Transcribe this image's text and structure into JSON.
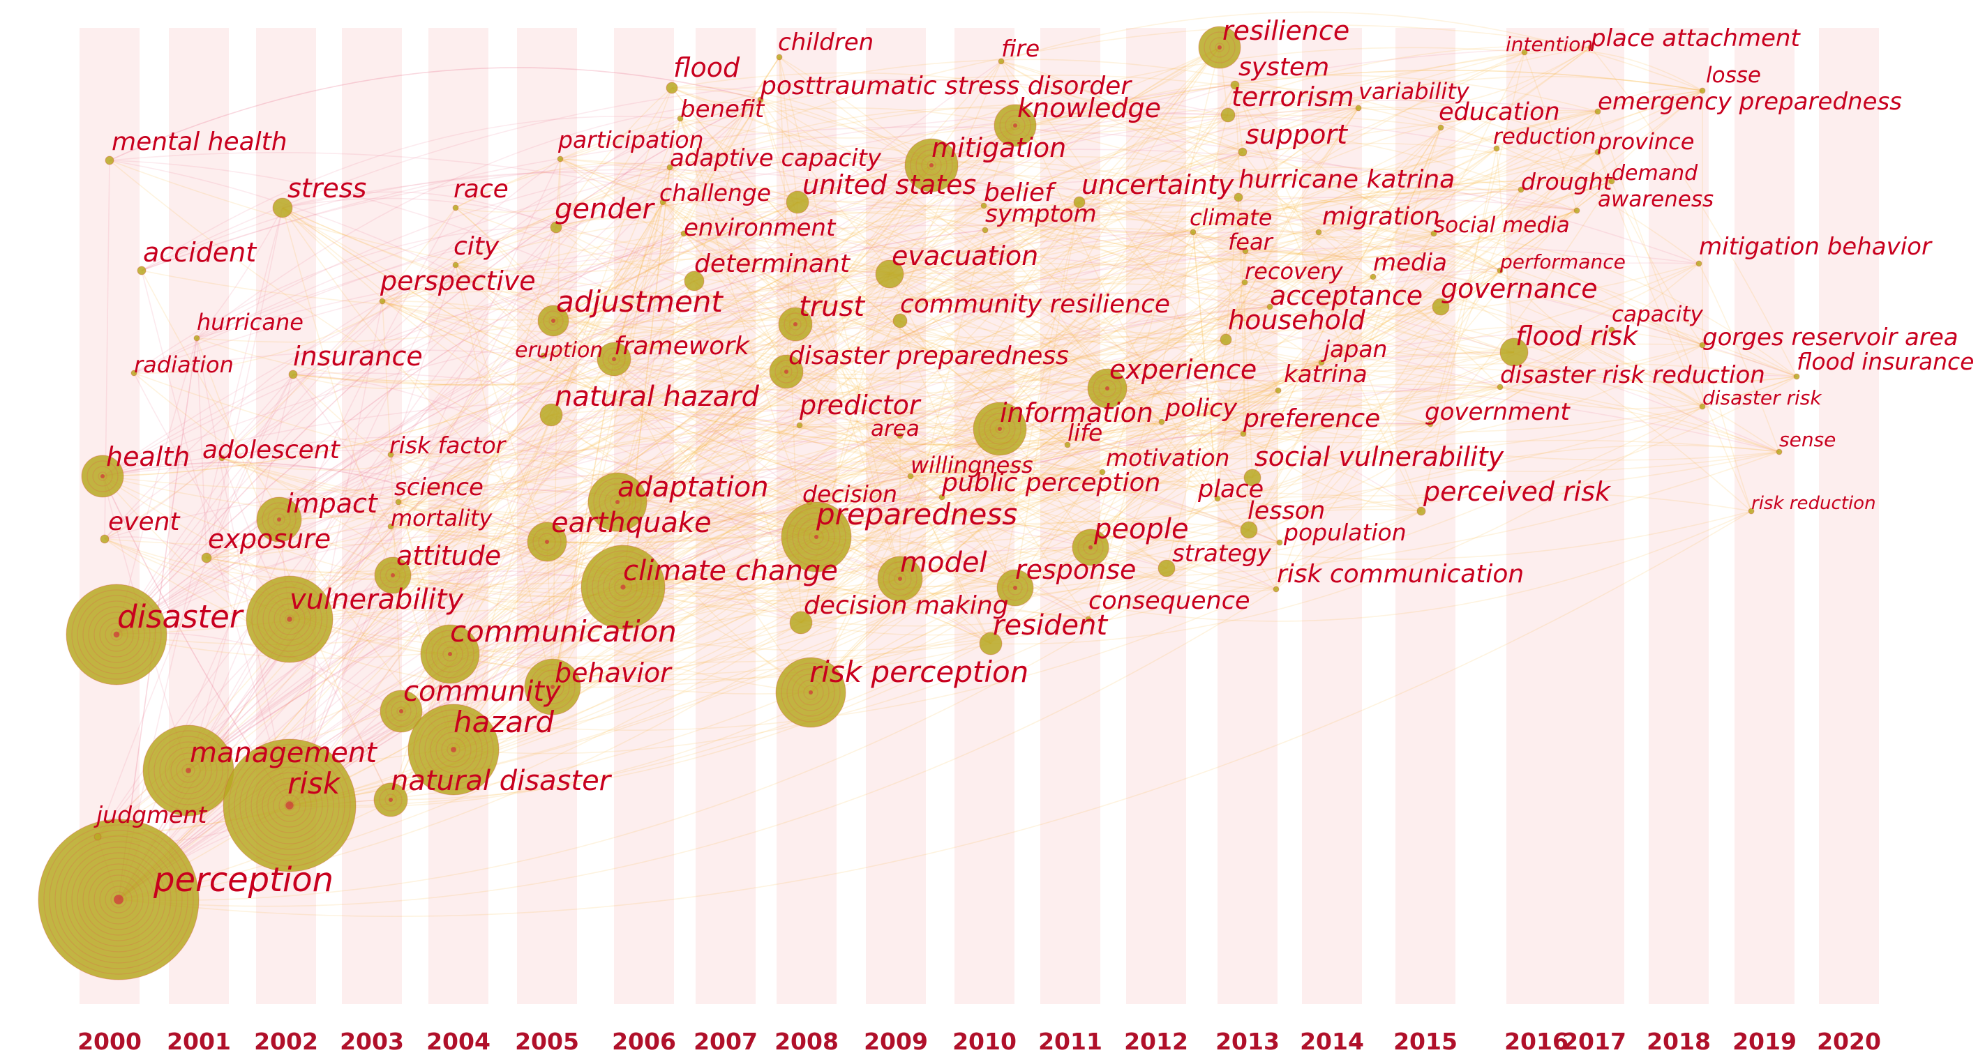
{
  "title": "",
  "years": [
    "2000",
    "2001",
    "2002",
    "2003",
    "2004",
    "2005",
    "2006",
    "2007",
    "2008",
    "2009",
    "2010",
    "2011",
    "2012",
    "2013",
    "2014",
    "2015",
    "2016",
    "2017",
    "2018",
    "2019",
    "2020"
  ],
  "chart_data": {
    "type": "timezone-cooccurrence-network",
    "xlabel": "",
    "ylabel": "",
    "x_axis": "year",
    "keywords": [
      {
        "label": "perception",
        "year": "2000",
        "freq": 10
      },
      {
        "label": "disaster",
        "year": "2000",
        "freq": 7
      },
      {
        "label": "health",
        "year": "2000",
        "freq": 3
      },
      {
        "label": "event",
        "year": "2000",
        "freq": 1
      },
      {
        "label": "accident",
        "year": "2000",
        "freq": 1
      },
      {
        "label": "mental health",
        "year": "2000",
        "freq": 1
      },
      {
        "label": "judgment",
        "year": "2000",
        "freq": 1
      },
      {
        "label": "radiation",
        "year": "2000",
        "freq": 1
      },
      {
        "label": "management",
        "year": "2001",
        "freq": 6
      },
      {
        "label": "hurricane",
        "year": "2001",
        "freq": 1
      },
      {
        "label": "exposure",
        "year": "2001",
        "freq": 1
      },
      {
        "label": "risk",
        "year": "2002",
        "freq": 8
      },
      {
        "label": "vulnerability",
        "year": "2002",
        "freq": 5
      },
      {
        "label": "impact",
        "year": "2002",
        "freq": 3
      },
      {
        "label": "stress",
        "year": "2002",
        "freq": 1
      },
      {
        "label": "insurance",
        "year": "2002",
        "freq": 1
      },
      {
        "label": "adolescent",
        "year": "2002",
        "freq": 1
      },
      {
        "label": "attitude",
        "year": "2003",
        "freq": 2
      },
      {
        "label": "community",
        "year": "2003",
        "freq": 2
      },
      {
        "label": "natural disaster",
        "year": "2003",
        "freq": 2
      },
      {
        "label": "perspective",
        "year": "2003",
        "freq": 1
      },
      {
        "label": "science",
        "year": "2003",
        "freq": 1
      },
      {
        "label": "mortality",
        "year": "2003",
        "freq": 1
      },
      {
        "label": "risk factor",
        "year": "2003",
        "freq": 1
      },
      {
        "label": "hazard",
        "year": "2004",
        "freq": 5
      },
      {
        "label": "communication",
        "year": "2004",
        "freq": 3
      },
      {
        "label": "race",
        "year": "2004",
        "freq": 1
      },
      {
        "label": "city",
        "year": "2004",
        "freq": 1
      },
      {
        "label": "earthquake",
        "year": "2005",
        "freq": 2
      },
      {
        "label": "behavior",
        "year": "2005",
        "freq": 3
      },
      {
        "label": "adjustment",
        "year": "2005",
        "freq": 2
      },
      {
        "label": "natural hazard",
        "year": "2005",
        "freq": 1
      },
      {
        "label": "gender",
        "year": "2005",
        "freq": 1
      },
      {
        "label": "participation",
        "year": "2005",
        "freq": 1
      },
      {
        "label": "eruption",
        "year": "2005",
        "freq": 1
      },
      {
        "label": "climate change",
        "year": "2006",
        "freq": 5
      },
      {
        "label": "adaptation",
        "year": "2006",
        "freq": 3
      },
      {
        "label": "framework",
        "year": "2006",
        "freq": 2
      },
      {
        "label": "flood",
        "year": "2007",
        "freq": 1
      },
      {
        "label": "benefit",
        "year": "2007",
        "freq": 1
      },
      {
        "label": "adaptive capacity",
        "year": "2007",
        "freq": 1
      },
      {
        "label": "challenge",
        "year": "2007",
        "freq": 1
      },
      {
        "label": "environment",
        "year": "2007",
        "freq": 1
      },
      {
        "label": "determinant",
        "year": "2007",
        "freq": 1
      },
      {
        "label": "risk perception",
        "year": "2008",
        "freq": 5
      },
      {
        "label": "preparedness",
        "year": "2008",
        "freq": 5
      },
      {
        "label": "trust",
        "year": "2008",
        "freq": 2
      },
      {
        "label": "disaster preparedness",
        "year": "2008",
        "freq": 2
      },
      {
        "label": "decision making",
        "year": "2008",
        "freq": 1
      },
      {
        "label": "united states",
        "year": "2008",
        "freq": 1
      },
      {
        "label": "predictor",
        "year": "2008",
        "freq": 1
      },
      {
        "label": "decision",
        "year": "2008",
        "freq": 1
      },
      {
        "label": "children",
        "year": "2008",
        "freq": 1
      },
      {
        "label": "posttraumatic stress disorder",
        "year": "2008",
        "freq": 1
      },
      {
        "label": "model",
        "year": "2009",
        "freq": 3
      },
      {
        "label": "mitigation",
        "year": "2009",
        "freq": 3
      },
      {
        "label": "evacuation",
        "year": "2009",
        "freq": 2
      },
      {
        "label": "community resilience",
        "year": "2009",
        "freq": 1
      },
      {
        "label": "area",
        "year": "2009",
        "freq": 1
      },
      {
        "label": "willingness",
        "year": "2009",
        "freq": 1
      },
      {
        "label": "information",
        "year": "2010",
        "freq": 3
      },
      {
        "label": "knowledge",
        "year": "2010",
        "freq": 3
      },
      {
        "label": "response",
        "year": "2010",
        "freq": 2
      },
      {
        "label": "resident",
        "year": "2010",
        "freq": 1
      },
      {
        "label": "fire",
        "year": "2010",
        "freq": 1
      },
      {
        "label": "belief",
        "year": "2010",
        "freq": 1
      },
      {
        "label": "symptom",
        "year": "2010",
        "freq": 1
      },
      {
        "label": "public perception",
        "year": "2010",
        "freq": 1
      },
      {
        "label": "uncertainty",
        "year": "2011",
        "freq": 1
      },
      {
        "label": "life",
        "year": "2011",
        "freq": 1
      },
      {
        "label": "experience",
        "year": "2011",
        "freq": 2
      },
      {
        "label": "people",
        "year": "2011",
        "freq": 2
      },
      {
        "label": "consequence",
        "year": "2011",
        "freq": 1
      },
      {
        "label": "motivation",
        "year": "2012",
        "freq": 1
      },
      {
        "label": "policy",
        "year": "2012",
        "freq": 1
      },
      {
        "label": "strategy",
        "year": "2012",
        "freq": 1
      },
      {
        "label": "resilience",
        "year": "2013",
        "freq": 2
      },
      {
        "label": "system",
        "year": "2013",
        "freq": 1
      },
      {
        "label": "terrorism",
        "year": "2013",
        "freq": 1
      },
      {
        "label": "support",
        "year": "2013",
        "freq": 1
      },
      {
        "label": "hurricane katrina",
        "year": "2013",
        "freq": 1
      },
      {
        "label": "climate",
        "year": "2013",
        "freq": 1
      },
      {
        "label": "fear",
        "year": "2013",
        "freq": 1
      },
      {
        "label": "recovery",
        "year": "2013",
        "freq": 1
      },
      {
        "label": "household",
        "year": "2013",
        "freq": 1
      },
      {
        "label": "preference",
        "year": "2013",
        "freq": 1
      },
      {
        "label": "social vulnerability",
        "year": "2013",
        "freq": 1
      },
      {
        "label": "place",
        "year": "2013",
        "freq": 1
      },
      {
        "label": "lesson",
        "year": "2013",
        "freq": 1
      },
      {
        "label": "acceptance",
        "year": "2014",
        "freq": 1
      },
      {
        "label": "katrina",
        "year": "2014",
        "freq": 1
      },
      {
        "label": "population",
        "year": "2014",
        "freq": 1
      },
      {
        "label": "risk communication",
        "year": "2014",
        "freq": 1
      },
      {
        "label": "migration",
        "year": "2014",
        "freq": 1
      },
      {
        "label": "japan",
        "year": "2014",
        "freq": 1
      },
      {
        "label": "variability",
        "year": "2015",
        "freq": 1
      },
      {
        "label": "media",
        "year": "2015",
        "freq": 1
      },
      {
        "label": "education",
        "year": "2015",
        "freq": 1
      },
      {
        "label": "social media",
        "year": "2015",
        "freq": 1
      },
      {
        "label": "governance",
        "year": "2015",
        "freq": 1
      },
      {
        "label": "government",
        "year": "2015",
        "freq": 1
      },
      {
        "label": "perceived risk",
        "year": "2015",
        "freq": 1
      },
      {
        "label": "flood risk",
        "year": "2016",
        "freq": 2
      },
      {
        "label": "reduction",
        "year": "2016",
        "freq": 1
      },
      {
        "label": "drought",
        "year": "2016",
        "freq": 1
      },
      {
        "label": "performance",
        "year": "2016",
        "freq": 1
      },
      {
        "label": "disaster risk reduction",
        "year": "2016",
        "freq": 1
      },
      {
        "label": "intention",
        "year": "2016",
        "freq": 1
      },
      {
        "label": "place attachment",
        "year": "2017",
        "freq": 1
      },
      {
        "label": "emergency preparedness",
        "year": "2017",
        "freq": 1
      },
      {
        "label": "province",
        "year": "2017",
        "freq": 1
      },
      {
        "label": "demand",
        "year": "2017",
        "freq": 1
      },
      {
        "label": "awareness",
        "year": "2017",
        "freq": 1
      },
      {
        "label": "capacity",
        "year": "2017",
        "freq": 1
      },
      {
        "label": "losse",
        "year": "2018",
        "freq": 1
      },
      {
        "label": "mitigation behavior",
        "year": "2018",
        "freq": 1
      },
      {
        "label": "gorges reservoir area",
        "year": "2018",
        "freq": 1
      },
      {
        "label": "flood insurance",
        "year": "2019",
        "freq": 1
      },
      {
        "label": "disaster risk",
        "year": "2019",
        "freq": 1
      },
      {
        "label": "sense",
        "year": "2019",
        "freq": 1
      },
      {
        "label": "risk reduction",
        "year": "2019",
        "freq": 1
      }
    ]
  },
  "colors": {
    "label": "#c8001e",
    "year": "#b0102a",
    "node": "#b7a822",
    "link_warm": "#f6b63a",
    "link_pink": "#ef7d98",
    "band": "#fdeeee"
  }
}
